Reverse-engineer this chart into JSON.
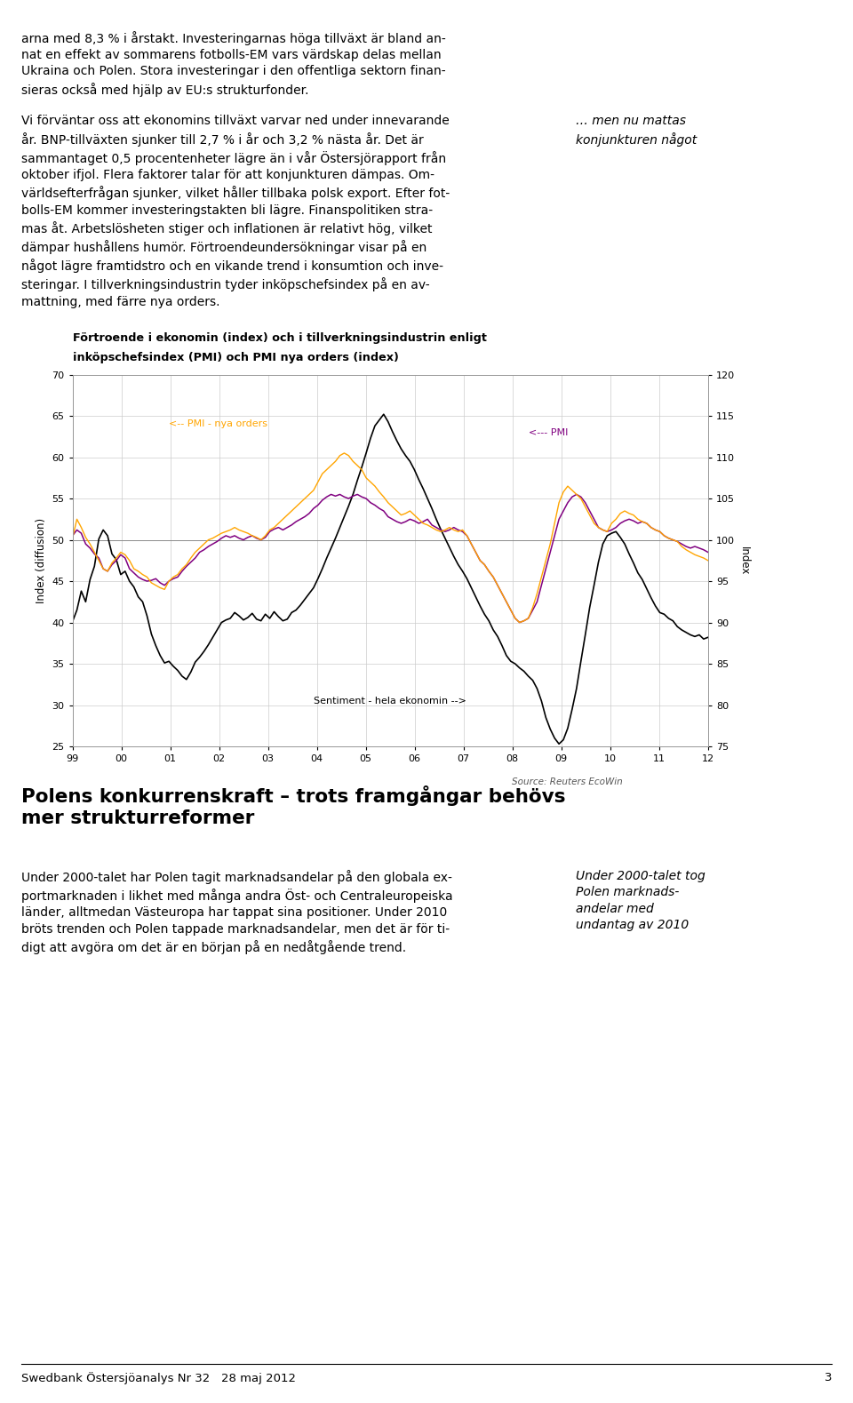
{
  "title_line1": "Förtroende i ekonomin (index) och i tillverkningsindustrin enligt",
  "title_line2": "inköpschefsindex (PMI) och PMI nya orders (index)",
  "ylabel_left": "Index (diffusion)",
  "ylabel_right": "Index",
  "source_text": "Source: Reuters EcoWin",
  "ylim_left": [
    25,
    70
  ],
  "ylim_right": [
    75,
    120
  ],
  "yticks_left": [
    25,
    30,
    35,
    40,
    45,
    50,
    55,
    60,
    65,
    70
  ],
  "yticks_right": [
    75,
    80,
    85,
    90,
    95,
    100,
    105,
    110,
    115,
    120
  ],
  "xtick_labels": [
    "99",
    "00",
    "01",
    "02",
    "03",
    "04",
    "05",
    "06",
    "07",
    "08",
    "09",
    "10",
    "11",
    "12"
  ],
  "color_pmi": "#800080",
  "color_pmi_orders": "#FFA500",
  "color_sentiment": "#000000",
  "annotation_pmi_orders": "<-- PMI - nya orders",
  "annotation_pmi": "<--- PMI",
  "annotation_sentiment": "Sentiment - hela ekonomin -->",
  "top_text1": "arna med 8,3 % i årstakt. Investeringarnas höga tillväxt är bland an-\nnat en effekt av sommarens fotbolls-EM vars värdskap delas mellan\nUkraina och Polen. Stora investeringar i den offentliga sektorn finan-\nsieras också med hjälp av EU:s strukturfonder.",
  "top_text2": "Vi förväntar oss att ekonomins tillväxt varvar ned under innevarande\når. BNP-tillväxten sjunker till 2,7 % i år och 3,2 % nästa år. Det är\nsammantaget 0,5 procentenheter lägre än i vår Östersjörapport från\noktober ifjol. Flera faktorer talar för att konjunkturen dämpas. Om-\nvärldsefterfrågan sjunker, vilket håller tillbaka polsk export. Efter fot-\nbolls-EM kommer investeringstakten bli lägre. Finanspolitiken stra-\nmas åt. Arbetslösheten stiger och inflationen är relativt hög, vilket\ndämpar hushållens humör. Förtroendeundersökningar visar på en\nnågot lägre framtidstro och en vikande trend i konsumtion och inve-\nsteringar. I tillverkningsindustrin tyder inköpschefsindex på en av-\nmattning, med färre nya orders.",
  "top_text_right": "… men nu mattas\nkonjunkturen något",
  "bottom_heading": "Polens konkurrenskraft – trots framgångar behövs\nmer strukturreformer",
  "bottom_text_left": "Under 2000-talet har Polen tagit marknadsandelar på den globala ex-\nportmarknaden i likhet med många andra Öst- och Centraleuropeiska\nländer, alltmedan Västeuropa har tappat sina positioner. Under 2010\nbröts trenden och Polen tappade marknadsandelar, men det är för ti-\ndigt att avgöra om det är en början på en nedåtgående trend.",
  "bottom_text_right": "Under 2000-talet tog\nPolen marknads-\nandelar med\nundantag av 2010",
  "footer_text": "Swedbank Östersjöanalys Nr 32   28 maj 2012",
  "footer_page": "3",
  "sentiment_data": [
    40.1,
    41.5,
    43.8,
    42.5,
    45.2,
    46.8,
    50.1,
    51.2,
    50.5,
    48.3,
    47.6,
    45.8,
    46.2,
    45.0,
    44.3,
    43.1,
    42.5,
    40.8,
    38.6,
    37.2,
    36.0,
    35.1,
    35.3,
    34.7,
    34.2,
    33.5,
    33.1,
    34.0,
    35.2,
    35.8,
    36.5,
    37.3,
    38.2,
    39.1,
    40.0,
    40.3,
    40.5,
    41.2,
    40.8,
    40.3,
    40.6,
    41.1,
    40.4,
    40.2,
    41.0,
    40.5,
    41.3,
    40.7,
    40.2,
    40.4,
    41.2,
    41.5,
    42.1,
    42.8,
    43.5,
    44.2,
    45.3,
    46.5,
    47.8,
    49.0,
    50.2,
    51.5,
    52.8,
    54.1,
    55.5,
    57.2,
    58.8,
    60.5,
    62.3,
    63.8,
    64.5,
    65.2,
    64.3,
    63.1,
    62.0,
    61.0,
    60.2,
    59.5,
    58.5,
    57.3,
    56.2,
    55.0,
    53.8,
    52.5,
    51.3,
    50.2,
    49.1,
    48.0,
    47.0,
    46.2,
    45.3,
    44.2,
    43.1,
    42.0,
    41.0,
    40.2,
    39.1,
    38.3,
    37.2,
    36.0,
    35.3,
    35.0,
    34.5,
    34.1,
    33.5,
    33.0,
    32.0,
    30.5,
    28.5,
    27.1,
    26.0,
    25.3,
    25.8,
    27.2,
    29.5,
    32.0,
    35.3,
    38.5,
    41.8,
    44.5,
    47.3,
    49.5,
    50.5,
    50.8,
    51.0,
    50.3,
    49.5,
    48.3,
    47.2,
    46.0,
    45.2,
    44.1,
    43.0,
    42.0,
    41.2,
    41.0,
    40.5,
    40.2,
    39.5,
    39.1,
    38.8,
    38.5,
    38.3,
    38.5,
    38.0,
    38.2
  ],
  "pmi_data": [
    50.5,
    51.2,
    50.8,
    49.5,
    49.0,
    48.3,
    47.8,
    46.5,
    46.2,
    47.0,
    47.5,
    48.2,
    47.8,
    46.5,
    46.0,
    45.5,
    45.2,
    45.0,
    45.1,
    45.3,
    44.8,
    44.5,
    45.0,
    45.3,
    45.5,
    46.2,
    46.8,
    47.3,
    47.8,
    48.5,
    48.8,
    49.2,
    49.5,
    49.8,
    50.2,
    50.5,
    50.3,
    50.5,
    50.2,
    50.0,
    50.3,
    50.5,
    50.2,
    50.0,
    50.3,
    51.0,
    51.3,
    51.5,
    51.2,
    51.5,
    51.8,
    52.2,
    52.5,
    52.8,
    53.2,
    53.8,
    54.2,
    54.8,
    55.2,
    55.5,
    55.3,
    55.5,
    55.2,
    55.0,
    55.3,
    55.5,
    55.2,
    55.0,
    54.5,
    54.2,
    53.8,
    53.5,
    52.8,
    52.5,
    52.2,
    52.0,
    52.2,
    52.5,
    52.3,
    52.0,
    52.2,
    52.5,
    51.8,
    51.5,
    51.2,
    51.0,
    51.2,
    51.5,
    51.2,
    51.0,
    50.5,
    49.5,
    48.5,
    47.5,
    47.0,
    46.2,
    45.5,
    44.5,
    43.5,
    42.5,
    41.5,
    40.5,
    40.0,
    40.2,
    40.5,
    41.5,
    42.5,
    44.5,
    46.5,
    48.5,
    50.5,
    52.5,
    53.5,
    54.5,
    55.2,
    55.5,
    55.2,
    54.5,
    53.5,
    52.5,
    51.5,
    51.2,
    51.0,
    51.2,
    51.5,
    52.0,
    52.3,
    52.5,
    52.3,
    52.0,
    52.2,
    52.0,
    51.5,
    51.2,
    51.0,
    50.5,
    50.2,
    50.0,
    49.8,
    49.5,
    49.2,
    49.0,
    49.2,
    49.0,
    48.8,
    48.5
  ],
  "pmi_orders_data": [
    50.2,
    52.5,
    51.5,
    50.3,
    49.5,
    48.5,
    47.5,
    46.5,
    46.2,
    47.2,
    47.8,
    48.5,
    48.2,
    47.5,
    46.5,
    46.2,
    45.8,
    45.5,
    44.8,
    44.5,
    44.2,
    44.0,
    45.0,
    45.5,
    45.8,
    46.5,
    47.0,
    47.8,
    48.5,
    49.0,
    49.5,
    50.0,
    50.2,
    50.5,
    50.8,
    51.0,
    51.2,
    51.5,
    51.2,
    51.0,
    50.8,
    50.5,
    50.3,
    50.0,
    50.5,
    51.2,
    51.5,
    52.0,
    52.5,
    53.0,
    53.5,
    54.0,
    54.5,
    55.0,
    55.5,
    56.0,
    57.0,
    58.0,
    58.5,
    59.0,
    59.5,
    60.2,
    60.5,
    60.2,
    59.5,
    59.0,
    58.5,
    57.5,
    57.0,
    56.5,
    55.8,
    55.2,
    54.5,
    54.0,
    53.5,
    53.0,
    53.2,
    53.5,
    53.0,
    52.5,
    52.0,
    51.8,
    51.5,
    51.2,
    51.0,
    51.2,
    51.5,
    51.2,
    51.0,
    51.2,
    50.5,
    49.5,
    48.5,
    47.5,
    47.0,
    46.2,
    45.5,
    44.5,
    43.5,
    42.5,
    41.5,
    40.5,
    40.0,
    40.2,
    40.5,
    41.8,
    43.5,
    45.5,
    47.5,
    49.5,
    52.0,
    54.5,
    55.8,
    56.5,
    56.0,
    55.5,
    55.0,
    54.0,
    53.0,
    52.0,
    51.5,
    51.2,
    51.0,
    52.0,
    52.5,
    53.2,
    53.5,
    53.2,
    53.0,
    52.5,
    52.2,
    52.0,
    51.5,
    51.2,
    51.0,
    50.5,
    50.2,
    50.0,
    49.8,
    49.2,
    48.8,
    48.5,
    48.2,
    48.0,
    47.8,
    47.5
  ]
}
